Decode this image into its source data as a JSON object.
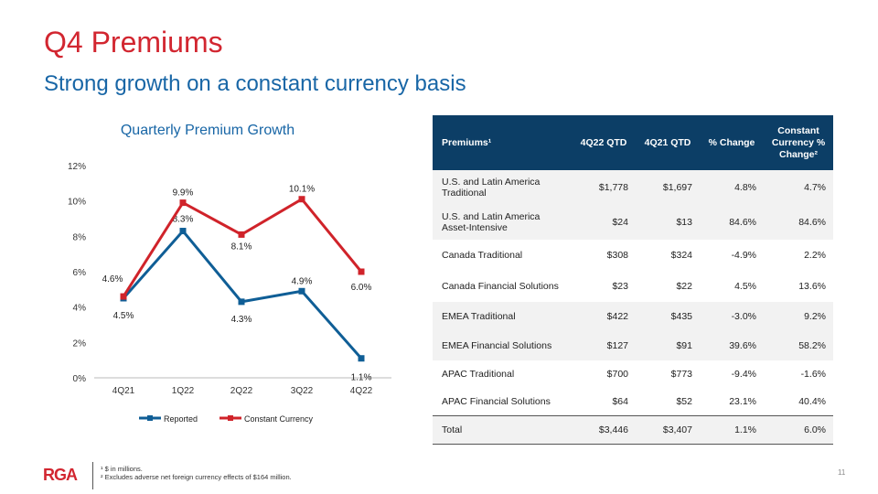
{
  "title": "Q4 Premiums",
  "subtitle": "Strong growth on a constant currency basis",
  "chart_data": {
    "type": "line",
    "title": "Quarterly Premium Growth",
    "categories": [
      "4Q21",
      "1Q22",
      "2Q22",
      "3Q22",
      "4Q22"
    ],
    "ylim": [
      0,
      12
    ],
    "yticks": [
      "0%",
      "2%",
      "4%",
      "6%",
      "8%",
      "10%",
      "12%"
    ],
    "series": [
      {
        "name": "Reported",
        "values": [
          4.5,
          8.3,
          4.3,
          4.9,
          1.1
        ],
        "labels": [
          "4.5%",
          "8.3%",
          "4.3%",
          "4.9%",
          "1.1%"
        ],
        "color": "#0f5e96"
      },
      {
        "name": "Constant Currency",
        "values": [
          4.6,
          9.9,
          8.1,
          10.1,
          6.0
        ],
        "labels": [
          "4.6%",
          "9.9%",
          "8.1%",
          "10.1%",
          "6.0%"
        ],
        "color": "#d0232a"
      }
    ],
    "legend": "bottom",
    "grid": false
  },
  "table": {
    "headers": [
      "Premiums¹",
      "4Q22 QTD",
      "4Q21 QTD",
      "% Change",
      "Constant Currency % Change²"
    ],
    "rows": [
      [
        "U.S. and Latin America Traditional",
        "$1,778",
        "$1,697",
        "4.8%",
        "4.7%"
      ],
      [
        "U.S. and Latin America Asset-Intensive",
        "$24",
        "$13",
        "84.6%",
        "84.6%"
      ],
      [
        "Canada Traditional",
        "$308",
        "$324",
        "-4.9%",
        "2.2%"
      ],
      [
        "Canada Financial Solutions",
        "$23",
        "$22",
        "4.5%",
        "13.6%"
      ],
      [
        "EMEA Traditional",
        "$422",
        "$435",
        "-3.0%",
        "9.2%"
      ],
      [
        "EMEA Financial Solutions",
        "$127",
        "$91",
        "39.6%",
        "58.2%"
      ],
      [
        "APAC Traditional",
        "$700",
        "$773",
        "-9.4%",
        "-1.6%"
      ],
      [
        "APAC Financial Solutions",
        "$64",
        "$52",
        "23.1%",
        "40.4%"
      ]
    ],
    "total": [
      "Total",
      "$3,446",
      "$3,407",
      "1.1%",
      "6.0%"
    ]
  },
  "footer": {
    "logo": "RGA",
    "note1": "¹ $ in millions.",
    "note2": "² Excludes adverse net foreign currency effects of $164 million.",
    "page": "11"
  }
}
